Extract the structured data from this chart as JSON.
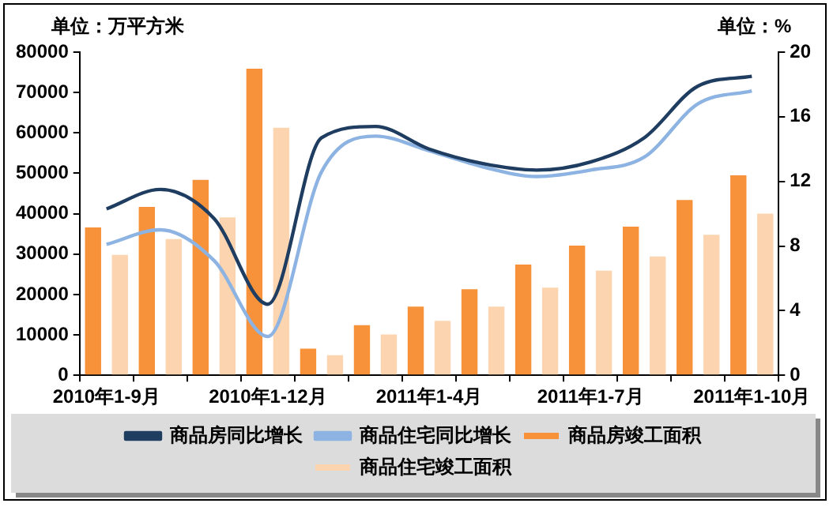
{
  "chart_data": {
    "type": "bar",
    "ylabel": "单位：万平方米",
    "y2label": "单位：%",
    "categories": [
      "2010年1-9月",
      null,
      null,
      "2010年1-12月",
      null,
      null,
      "2011年1-4月",
      null,
      null,
      "2011年1-7月",
      null,
      null,
      "2011年1-10月"
    ],
    "series": [
      {
        "name": "商品房竣工面积",
        "color": "#f7923a",
        "values": [
          36600,
          41700,
          48400,
          75900,
          6600,
          12400,
          17000,
          21300,
          27400,
          32100,
          36800,
          43400,
          49500
        ]
      },
      {
        "name": "商品住宅竣工面积",
        "color": "#fcd5b0",
        "values": [
          29800,
          33700,
          39100,
          61300,
          5000,
          10100,
          13500,
          17000,
          21700,
          25900,
          29400,
          34800,
          40000
        ]
      },
      {
        "name": "商品房同比增长",
        "type": "line",
        "axis": "y2",
        "color": "#1f3d60",
        "values": [
          10.3,
          11.5,
          9.7,
          4.4,
          14.7,
          15.4,
          14.0,
          13.1,
          12.7,
          13.2,
          14.7,
          17.9,
          18.5
        ]
      },
      {
        "name": "商品住宅同比增长",
        "type": "line",
        "axis": "y2",
        "color": "#8db3e2",
        "values": [
          8.1,
          9.0,
          7.1,
          2.4,
          12.6,
          14.8,
          13.9,
          12.9,
          12.3,
          12.7,
          13.5,
          16.8,
          17.6
        ]
      }
    ],
    "ylim": [
      0,
      80000
    ],
    "yticks": [
      0,
      10000,
      20000,
      30000,
      40000,
      50000,
      60000,
      70000,
      80000
    ],
    "y2lim": [
      0,
      20
    ],
    "y2ticks": [
      0,
      4,
      8,
      12,
      16,
      20
    ],
    "grid": false,
    "legend": "bottom",
    "marker": "none"
  }
}
